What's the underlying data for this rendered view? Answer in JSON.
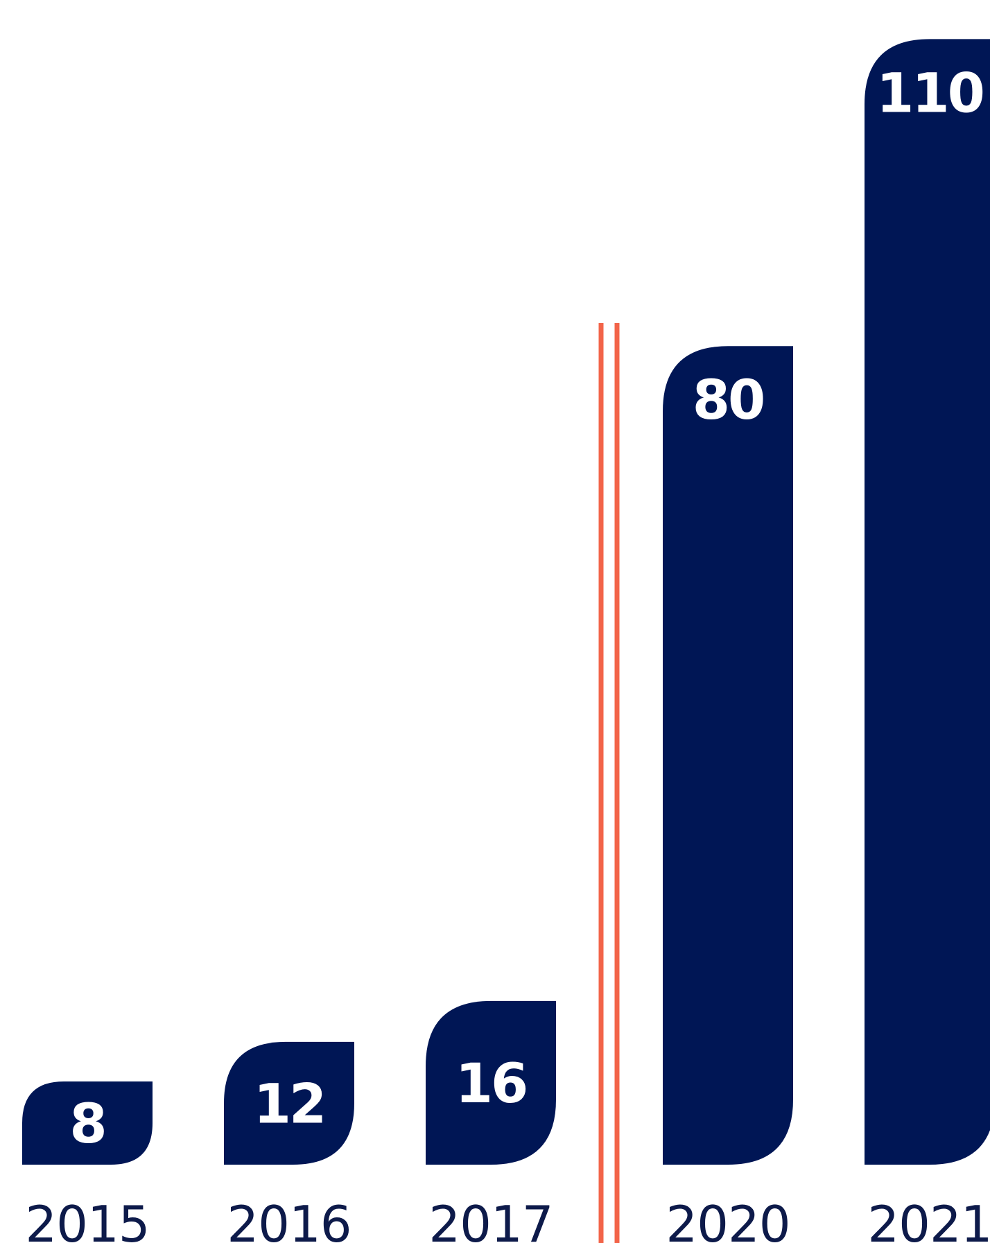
{
  "colors": {
    "bar": "#001655",
    "divider": "#f26449",
    "tick_text": "#0d1a4a"
  },
  "chart_data": {
    "type": "bar",
    "title": "",
    "xlabel": "",
    "ylabel": "",
    "categories": [
      "2015",
      "2016",
      "2017",
      "2020",
      "2021"
    ],
    "values": [
      8,
      12,
      16,
      80,
      110
    ],
    "data_labels": [
      "8",
      "12",
      "16",
      "80",
      "110"
    ],
    "grid": false,
    "legend": "none",
    "axis_break": {
      "after_category": "2017",
      "style": "double vertical line"
    }
  }
}
